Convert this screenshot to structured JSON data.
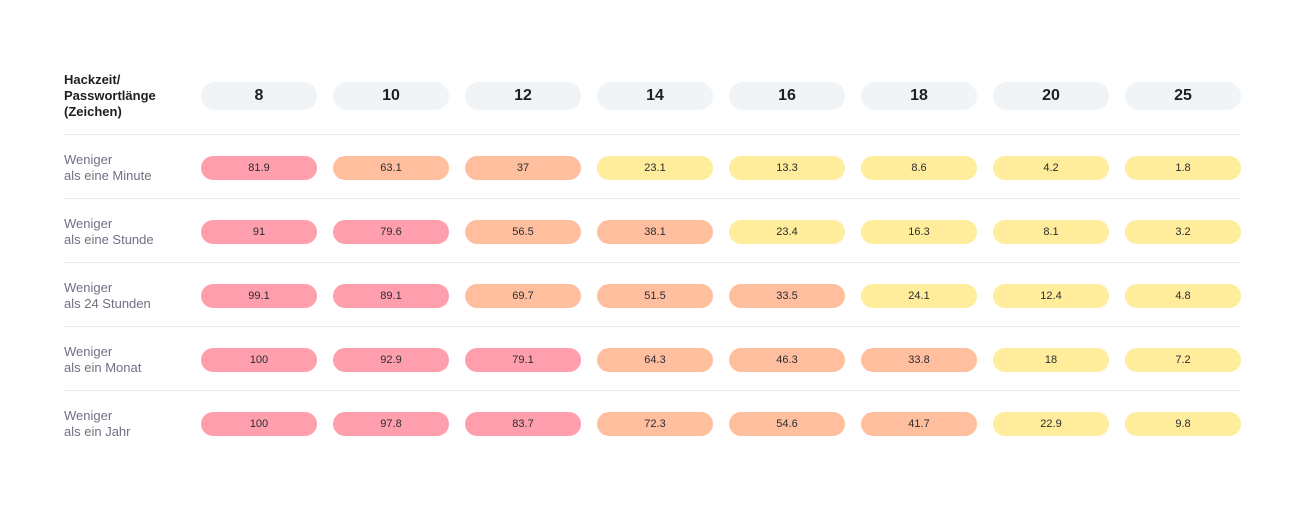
{
  "chart_data": {
    "type": "table",
    "corner_label": [
      "Hackzeit/",
      "Passwortlänge",
      "(Zeichen)"
    ],
    "columns": [
      "8",
      "10",
      "12",
      "14",
      "16",
      "18",
      "20",
      "25"
    ],
    "rows": [
      {
        "label": [
          "Weniger",
          "als eine Minute"
        ],
        "values": [
          "81.9",
          "63.1",
          "37",
          "23.1",
          "13.3",
          "8.6",
          "4.2",
          "1.8"
        ]
      },
      {
        "label": [
          "Weniger",
          "als eine Stunde"
        ],
        "values": [
          "91",
          "79.6",
          "56.5",
          "38.1",
          "23.4",
          "16.3",
          "8.1",
          "3.2"
        ]
      },
      {
        "label": [
          "Weniger",
          "als 24 Stunden"
        ],
        "values": [
          "99.1",
          "89.1",
          "69.7",
          "51.5",
          "33.5",
          "24.1",
          "12.4",
          "4.8"
        ]
      },
      {
        "label": [
          "Weniger",
          "als ein Monat"
        ],
        "values": [
          "100",
          "92.9",
          "79.1",
          "64.3",
          "46.3",
          "33.8",
          "18",
          "7.2"
        ]
      },
      {
        "label": [
          "Weniger",
          "als ein Jahr"
        ],
        "values": [
          "100",
          "97.8",
          "83.7",
          "72.3",
          "54.6",
          "41.7",
          "22.9",
          "9.8"
        ]
      }
    ],
    "color_scale": {
      "high": "#ff9fae",
      "medium": "#ffbf9f",
      "low": "#ffed9b"
    },
    "header_fill": "#f1f4f7",
    "divider_color": "#e6e9ee"
  }
}
